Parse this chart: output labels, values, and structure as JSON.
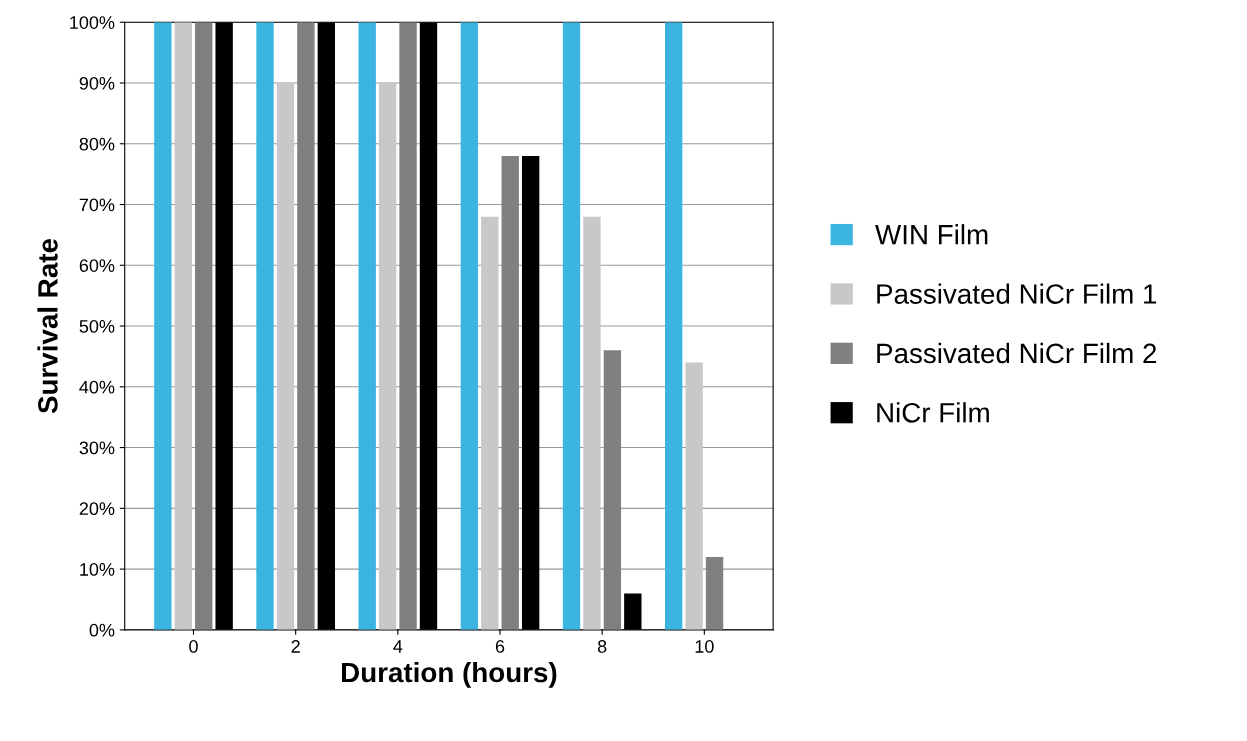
{
  "chart_data": {
    "type": "bar",
    "xlabel": "Duration (hours)",
    "ylabel": "Survival Rate",
    "categories": [
      "0",
      "2",
      "4",
      "6",
      "8",
      "10"
    ],
    "series": [
      {
        "name": "WIN Film",
        "color": "#3cb4e0",
        "values": [
          100,
          100,
          100,
          100,
          100,
          100
        ]
      },
      {
        "name": "Passivated NiCr Film 1",
        "color": "#c8c8c8",
        "values": [
          100,
          90,
          90,
          68,
          68,
          44
        ]
      },
      {
        "name": "Passivated NiCr Film 2",
        "color": "#808080",
        "values": [
          100,
          100,
          100,
          78,
          46,
          12
        ]
      },
      {
        "name": "NiCr Film",
        "color": "#000000",
        "values": [
          100,
          100,
          100,
          78,
          6,
          0
        ]
      }
    ],
    "ylim": [
      0,
      100
    ],
    "yticks": [
      {
        "value": 0,
        "label": "0%"
      },
      {
        "value": 10,
        "label": "10%"
      },
      {
        "value": 20,
        "label": "20%"
      },
      {
        "value": 30,
        "label": "30%"
      },
      {
        "value": 40,
        "label": "40%"
      },
      {
        "value": 50,
        "label": "50%"
      },
      {
        "value": 60,
        "label": "60%"
      },
      {
        "value": 70,
        "label": "70%"
      },
      {
        "value": 80,
        "label": "80%"
      },
      {
        "value": 90,
        "label": "90%"
      },
      {
        "value": 100,
        "label": "100%"
      }
    ],
    "grid": "y",
    "legend": "right"
  }
}
